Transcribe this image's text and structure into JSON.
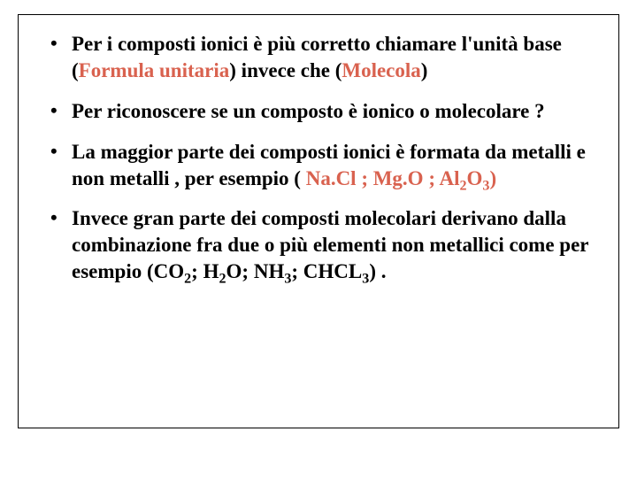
{
  "slide": {
    "background_color": "#ffffff",
    "border_color": "#000000",
    "text_color": "#000000",
    "accent_color": "#d9624f",
    "font_family": "Georgia, 'Times New Roman', serif",
    "font_size_pt": 17,
    "font_weight": "bold",
    "bullets": [
      {
        "segments": [
          {
            "t": "Per i composti ionici è più corretto chiamare l'unità base ("
          },
          {
            "t": "Formula unitaria",
            "accent": true
          },
          {
            "t": ") invece che ("
          },
          {
            "t": "Molecola",
            "accent": true
          },
          {
            "t": ")"
          }
        ]
      },
      {
        "segments": [
          {
            "t": "Per riconoscere se un composto è ionico o molecolare ?"
          }
        ]
      },
      {
        "segments": [
          {
            "t": "La maggior parte dei composti ionici è formata da metalli e non metalli , per esempio (  "
          },
          {
            "t": "Na.Cl ; Mg.O ; Al",
            "accent": true
          },
          {
            "t": "2",
            "accent": true,
            "sub": true
          },
          {
            "t": "O",
            "accent": true
          },
          {
            "t": "3",
            "accent": true,
            "sub": true
          },
          {
            "t": ")",
            "accent": true
          }
        ]
      },
      {
        "segments": [
          {
            "t": "Invece gran parte dei composti molecolari derivano dalla combinazione fra due o più elementi non metallici come per esempio (CO"
          },
          {
            "t": "2",
            "sub": true
          },
          {
            "t": "; H"
          },
          {
            "t": "2",
            "sub": true
          },
          {
            "t": "O; NH"
          },
          {
            "t": "3",
            "sub": true
          },
          {
            "t": "; CHCL"
          },
          {
            "t": "3",
            "sub": true
          },
          {
            "t": ") ."
          }
        ]
      }
    ]
  }
}
